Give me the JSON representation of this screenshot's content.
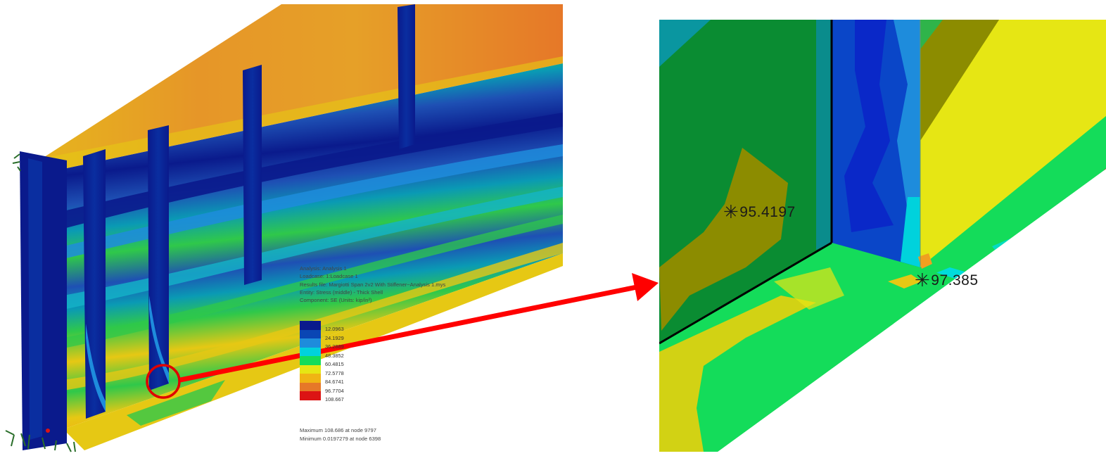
{
  "info": {
    "analysis": "Analysis: Analysis 1",
    "loadcase": "Loadcase: 1:Loadcase 1",
    "results_file": "Results file: Margiotti Span 2v2 With Stiffener~Analysis 1.mys",
    "entity": "Entity: Stress (middle) - Thick Shell",
    "component": "Component: SE (Units: kip/in²)"
  },
  "legend": {
    "labels": [
      "12.0963",
      "24.1929",
      "36.2889",
      "48.3852",
      "60.4815",
      "72.5778",
      "84.6741",
      "96.7704",
      "108.667"
    ],
    "colors": [
      "#0a1a8c",
      "#0a46b4",
      "#1e8cdc",
      "#00d2dc",
      "#14dc5a",
      "#e6e614",
      "#f0b414",
      "#e67828",
      "#dc1414"
    ]
  },
  "maximum": "Maximum 108.686 at node 9797",
  "minimum": "Minimum 0.0197279 at node 6398",
  "probes": [
    {
      "symbol": "✳",
      "value": "95.4197"
    },
    {
      "symbol": "✳",
      "value": "97.385"
    }
  ],
  "colors": {
    "arrow": "#ff0000",
    "highlight_circle": "#e00000"
  }
}
